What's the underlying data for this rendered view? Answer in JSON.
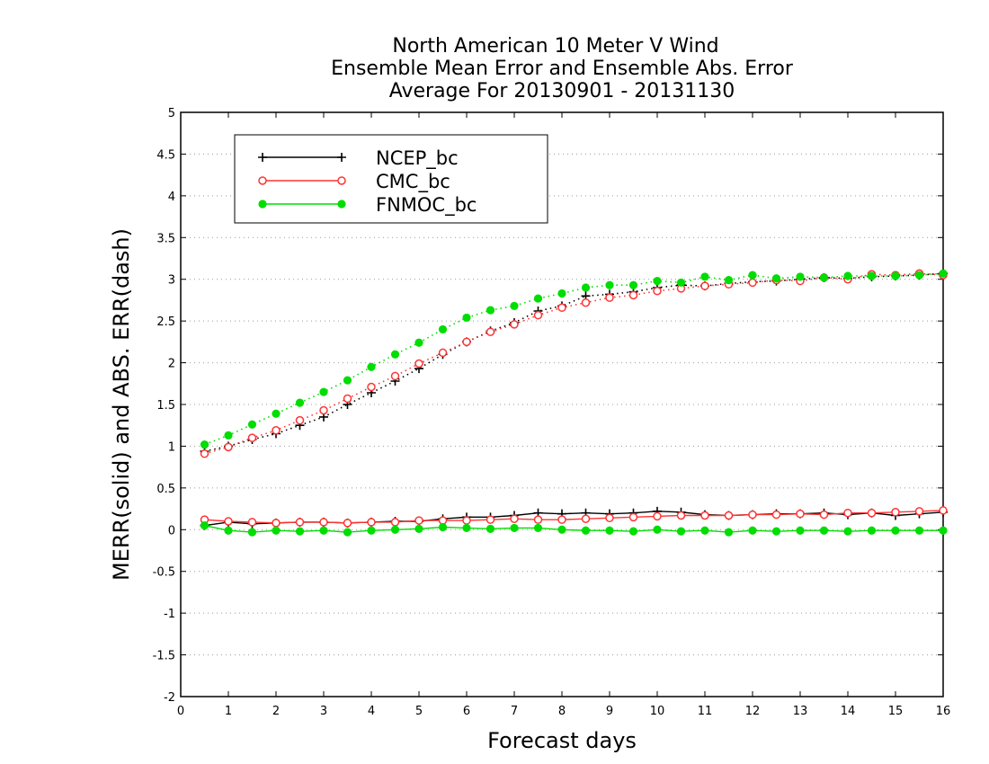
{
  "chart_data": {
    "type": "line",
    "title": [
      "North American 10 Meter V Wind",
      "Ensemble Mean Error and Ensemble Abs. Error",
      "Average For 20130901 - 20131130"
    ],
    "xlabel": "Forecast days",
    "ylabel": "MERR(solid) and ABS. ERR(dash)",
    "xlim": [
      0,
      16
    ],
    "ylim": [
      -2,
      5
    ],
    "xticks": [
      "0",
      "1",
      "2",
      "3",
      "4",
      "5",
      "6",
      "7",
      "8",
      "9",
      "10",
      "11",
      "12",
      "13",
      "14",
      "15",
      "16"
    ],
    "yticks": [
      "-2",
      "-1.5",
      "-1",
      "-0.5",
      "0",
      "0.5",
      "1",
      "1.5",
      "2",
      "2.5",
      "3",
      "3.5",
      "4",
      "4.5",
      "5"
    ],
    "grid": true,
    "legend_position": "top-left",
    "x": [
      0.5,
      1,
      1.5,
      2,
      2.5,
      3,
      3.5,
      4,
      4.5,
      5,
      5.5,
      6,
      6.5,
      7,
      7.5,
      8,
      8.5,
      9,
      9.5,
      10,
      10.5,
      11,
      11.5,
      12,
      12.5,
      13,
      13.5,
      14,
      14.5,
      15,
      15.5,
      16
    ],
    "series": [
      {
        "name": "NCEP_bc",
        "color": "#000000",
        "marker": "plus",
        "merr": [
          0.05,
          0.09,
          0.07,
          0.08,
          0.09,
          0.09,
          0.08,
          0.09,
          0.1,
          0.1,
          0.13,
          0.15,
          0.15,
          0.17,
          0.2,
          0.19,
          0.2,
          0.19,
          0.2,
          0.22,
          0.21,
          0.18,
          0.17,
          0.18,
          0.19,
          0.19,
          0.2,
          0.18,
          0.2,
          0.17,
          0.19,
          0.21
        ],
        "abs_err": [
          0.94,
          1.0,
          1.08,
          1.15,
          1.25,
          1.35,
          1.5,
          1.64,
          1.78,
          1.93,
          2.1,
          2.25,
          2.38,
          2.48,
          2.62,
          2.68,
          2.8,
          2.82,
          2.85,
          2.9,
          2.93,
          2.92,
          2.95,
          2.97,
          2.98,
          3.0,
          3.02,
          3.01,
          3.03,
          3.04,
          3.05,
          3.07
        ]
      },
      {
        "name": "CMC_bc",
        "color": "#ff3333",
        "marker": "open-circle",
        "merr": [
          0.12,
          0.1,
          0.09,
          0.08,
          0.09,
          0.09,
          0.08,
          0.09,
          0.09,
          0.11,
          0.11,
          0.11,
          0.12,
          0.13,
          0.12,
          0.12,
          0.13,
          0.14,
          0.15,
          0.16,
          0.17,
          0.17,
          0.17,
          0.18,
          0.18,
          0.19,
          0.18,
          0.2,
          0.2,
          0.21,
          0.22,
          0.23
        ],
        "abs_err": [
          0.91,
          0.99,
          1.1,
          1.19,
          1.31,
          1.43,
          1.57,
          1.71,
          1.84,
          1.99,
          2.12,
          2.25,
          2.37,
          2.46,
          2.57,
          2.66,
          2.72,
          2.78,
          2.81,
          2.86,
          2.89,
          2.92,
          2.94,
          2.96,
          2.99,
          2.98,
          3.02,
          3.0,
          3.06,
          3.05,
          3.07,
          3.05
        ]
      },
      {
        "name": "FNMOC_bc",
        "color": "#00dd00",
        "marker": "filled-circle",
        "merr": [
          0.05,
          -0.01,
          -0.03,
          -0.01,
          -0.02,
          -0.01,
          -0.03,
          -0.01,
          0.0,
          0.01,
          0.03,
          0.02,
          0.01,
          0.02,
          0.02,
          0.0,
          -0.01,
          -0.01,
          -0.02,
          0.0,
          -0.02,
          -0.01,
          -0.03,
          -0.01,
          -0.02,
          -0.01,
          -0.01,
          -0.02,
          -0.01,
          -0.01,
          -0.01,
          -0.01
        ],
        "abs_err": [
          1.02,
          1.13,
          1.26,
          1.39,
          1.52,
          1.65,
          1.79,
          1.95,
          2.1,
          2.24,
          2.4,
          2.54,
          2.63,
          2.68,
          2.77,
          2.83,
          2.9,
          2.93,
          2.93,
          2.98,
          2.96,
          3.03,
          2.99,
          3.05,
          3.01,
          3.03,
          3.02,
          3.04,
          3.04,
          3.04,
          3.05,
          3.07
        ]
      }
    ]
  }
}
